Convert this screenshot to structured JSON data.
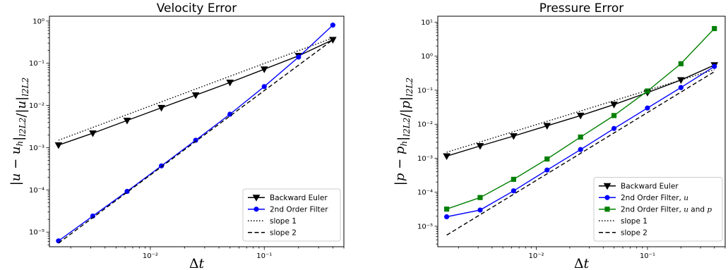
{
  "chart_data": [
    {
      "type": "line",
      "title": "Velocity Error",
      "xlabel": "Δt",
      "ylabel": "|u − u_h|_{l2L2}/|u|_{l2L2}",
      "xscale": "log",
      "yscale": "log",
      "xlim": [
        0.0013,
        0.5
      ],
      "ylim": [
        4.5e-06,
        1.3
      ],
      "xticks": [
        "10⁻²",
        "10⁻¹"
      ],
      "yticks": [
        "10⁻⁵",
        "10⁻⁴",
        "10⁻³",
        "10⁻²",
        "10⁻¹",
        "10⁰"
      ],
      "legend_position": "bottom-right",
      "grid": false,
      "x": [
        0.0015625,
        0.003125,
        0.00625,
        0.0125,
        0.025,
        0.05,
        0.1,
        0.2,
        0.4
      ],
      "series": [
        {
          "name": "Backward Euler",
          "color": "#000000",
          "marker": "triangle-down",
          "dash": "solid",
          "values": [
            0.00115,
            0.0022,
            0.0044,
            0.0088,
            0.0175,
            0.035,
            0.072,
            0.15,
            0.36
          ]
        },
        {
          "name": "2nd Order Filter",
          "color": "#0000ff",
          "marker": "circle",
          "dash": "solid",
          "values": [
            6.2e-06,
            2.4e-05,
            9.2e-05,
            0.00037,
            0.0015,
            0.0062,
            0.028,
            0.14,
            0.8
          ]
        },
        {
          "name": "slope 1",
          "color": "#000000",
          "marker": "none",
          "dash": "dotted",
          "values": [
            0.0015,
            0.4
          ],
          "x": [
            0.0015625,
            0.4
          ]
        },
        {
          "name": "slope 2",
          "color": "#000000",
          "marker": "none",
          "dash": "dashed",
          "values": [
            5.5e-06,
            0.36
          ],
          "x": [
            0.0015625,
            0.4
          ]
        }
      ]
    },
    {
      "type": "line",
      "title": "Pressure Error",
      "xlabel": "Δt",
      "ylabel": "|p − p_h|_{l2L2}/|p|_{l2L2}",
      "xscale": "log",
      "yscale": "log",
      "xlim": [
        0.0013,
        0.5
      ],
      "ylim": [
        2.5e-06,
        15
      ],
      "xticks": [
        "10⁻²",
        "10⁻¹"
      ],
      "yticks": [
        "10⁻⁵",
        "10⁻⁴",
        "10⁻³",
        "10⁻²",
        "10⁻¹",
        "10⁰",
        "10¹"
      ],
      "legend_position": "bottom-right",
      "grid": false,
      "x": [
        0.0015625,
        0.003125,
        0.00625,
        0.0125,
        0.025,
        0.05,
        0.1,
        0.2,
        0.4
      ],
      "series": [
        {
          "name": "Backward Euler",
          "color": "#000000",
          "marker": "triangle-down",
          "dash": "solid",
          "values": [
            0.00115,
            0.0023,
            0.0045,
            0.009,
            0.018,
            0.038,
            0.085,
            0.2,
            0.55
          ]
        },
        {
          "name": "2nd Order Filter, u",
          "color": "#0000ff",
          "marker": "circle",
          "dash": "solid",
          "values": [
            1.9e-05,
            3e-05,
            0.00011,
            0.00045,
            0.0018,
            0.0075,
            0.03,
            0.12,
            0.5
          ]
        },
        {
          "name": "2nd Order Filter, u and p",
          "color": "#008000",
          "marker": "square",
          "dash": "solid",
          "values": [
            3.2e-05,
            7e-05,
            0.00024,
            0.00095,
            0.0042,
            0.018,
            0.095,
            0.6,
            6.5
          ]
        },
        {
          "name": "slope 1",
          "color": "#000000",
          "marker": "none",
          "dash": "dotted",
          "values": [
            0.0015,
            0.4
          ],
          "x": [
            0.0015625,
            0.4
          ]
        },
        {
          "name": "slope 2",
          "color": "#000000",
          "marker": "none",
          "dash": "dashed",
          "values": [
            5.5e-06,
            0.35
          ],
          "x": [
            0.0015625,
            0.4
          ]
        }
      ]
    }
  ]
}
